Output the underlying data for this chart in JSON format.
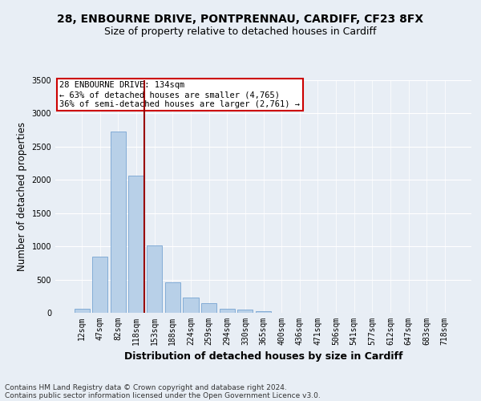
{
  "title_line1": "28, ENBOURNE DRIVE, PONTPRENNAU, CARDIFF, CF23 8FX",
  "title_line2": "Size of property relative to detached houses in Cardiff",
  "xlabel": "Distribution of detached houses by size in Cardiff",
  "ylabel": "Number of detached properties",
  "categories": [
    "12sqm",
    "47sqm",
    "82sqm",
    "118sqm",
    "153sqm",
    "188sqm",
    "224sqm",
    "259sqm",
    "294sqm",
    "330sqm",
    "365sqm",
    "400sqm",
    "436sqm",
    "471sqm",
    "506sqm",
    "541sqm",
    "577sqm",
    "612sqm",
    "647sqm",
    "683sqm",
    "718sqm"
  ],
  "values": [
    60,
    850,
    2730,
    2060,
    1010,
    455,
    225,
    140,
    65,
    50,
    30,
    0,
    0,
    0,
    0,
    0,
    0,
    0,
    0,
    0,
    0
  ],
  "bar_color": "#b8d0e8",
  "bar_edge_color": "#6699cc",
  "vline_x": 3.42,
  "vline_color": "#990000",
  "annotation_text": "28 ENBOURNE DRIVE: 134sqm\n← 63% of detached houses are smaller (4,765)\n36% of semi-detached houses are larger (2,761) →",
  "annotation_box_color": "#ffffff",
  "annotation_box_edge_color": "#cc0000",
  "ylim": [
    0,
    3500
  ],
  "yticks": [
    0,
    500,
    1000,
    1500,
    2000,
    2500,
    3000,
    3500
  ],
  "bg_color": "#e8eef5",
  "plot_bg_color": "#e8eef5",
  "footer_line1": "Contains HM Land Registry data © Crown copyright and database right 2024.",
  "footer_line2": "Contains public sector information licensed under the Open Government Licence v3.0.",
  "title_fontsize": 10,
  "subtitle_fontsize": 9,
  "axis_label_fontsize": 8.5,
  "tick_fontsize": 7,
  "annotation_fontsize": 7.5,
  "footer_fontsize": 6.5
}
